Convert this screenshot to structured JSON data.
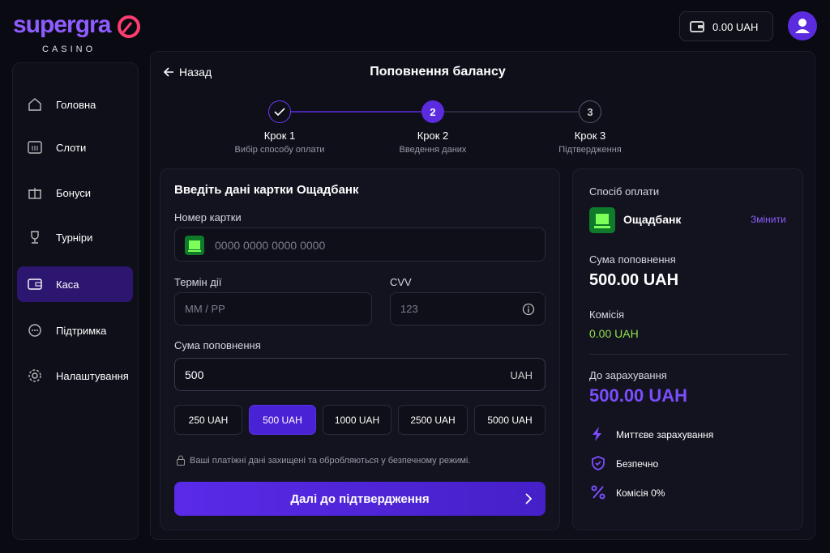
{
  "header": {
    "logo": "supergra",
    "logo_sub": "CASINO",
    "balance": "0.00 UAH"
  },
  "sidebar": {
    "items": [
      "Головна",
      "Слоти",
      "Бонуси",
      "Турніри",
      "Каса",
      "Підтримка",
      "Налаштування"
    ],
    "active": 4
  },
  "page": {
    "back": "Назад",
    "title": "Поповнення балансу",
    "steps": [
      {
        "title": "Крок 1",
        "subtitle": "Вибір способу оплати"
      },
      {
        "number": "2",
        "title": "Крок 2",
        "subtitle": "Введення даних"
      },
      {
        "number": "3",
        "title": "Крок 3",
        "subtitle": "Підтвердження"
      }
    ]
  },
  "form": {
    "title": "Введіть дані картки Ощадбанк",
    "card_label": "Номер картки",
    "card_placeholder": "0000 0000 0000 0000",
    "expiry_label": "Термін дії",
    "expiry_placeholder": "MM / PP",
    "cvv_label": "CVV",
    "cvv_placeholder": "123",
    "amount_label": "Сума поповнення",
    "amount": "500",
    "currency": "UAH",
    "presets": [
      "250 UAH",
      "500 UAH",
      "1000 UAH",
      "2500 UAH",
      "5000 UAH"
    ],
    "active_preset": 1,
    "security_note": "Ваші платіжні дані захищені та обробляються у безпечному режимі.",
    "submit": "Далі до підтвердження"
  },
  "summary": {
    "method_label": "Спосіб оплати",
    "bank": "Ощадбанк",
    "change": "Змінити",
    "amount_label": "Сума поповнення",
    "amount": "500.00 UAH",
    "fee_label": "Комісія",
    "fee": "0.00 UAH",
    "credit_label": "До зарахування",
    "credit": "500.00 UAH",
    "features": [
      "Миттєве зарахування",
      "Безпечно",
      "Комісія 0%"
    ]
  }
}
